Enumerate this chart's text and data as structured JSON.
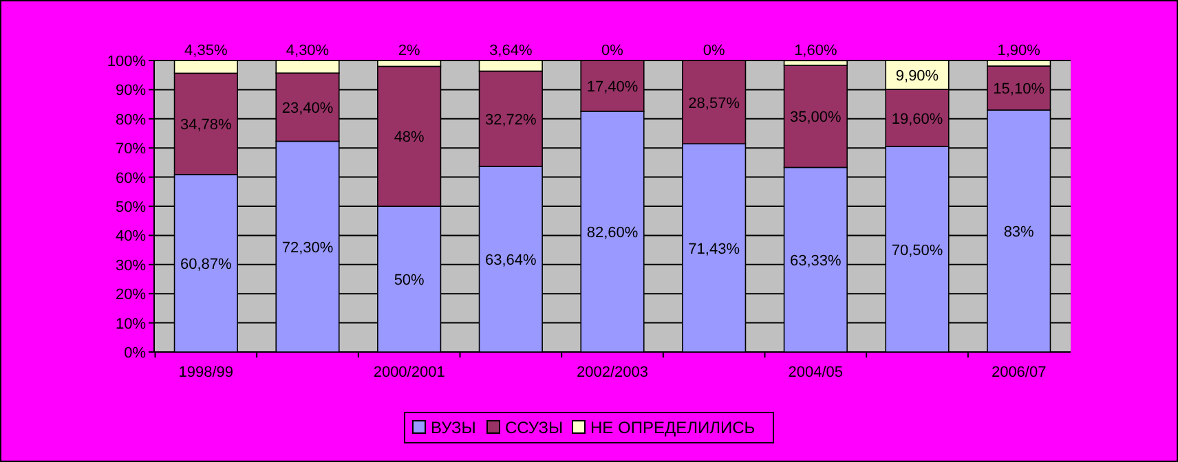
{
  "chart_data": {
    "type": "bar",
    "stacked": true,
    "categories": [
      "1998/99",
      null,
      "2000/2001",
      null,
      "2002/2003",
      null,
      "2004/05",
      null,
      "2006/07"
    ],
    "series": [
      {
        "name": "ВУЗЫ",
        "color": "#9999ff",
        "values": [
          60.87,
          72.3,
          50,
          63.64,
          82.6,
          71.43,
          63.33,
          70.5,
          83
        ],
        "value_labels": [
          "60,87%",
          "72,30%",
          "50%",
          "63,64%",
          "82,60%",
          "71,43%",
          "63,33%",
          "70,50%",
          "83%"
        ]
      },
      {
        "name": "ССУЗЫ",
        "color": "#993366",
        "values": [
          34.78,
          23.4,
          48,
          32.72,
          17.4,
          28.57,
          35.0,
          19.6,
          15.1
        ],
        "value_labels": [
          "34,78%",
          "23,40%",
          "48%",
          "32,72%",
          "17,40%",
          "28,57%",
          "35,00%",
          "19,60%",
          "15,10%"
        ]
      },
      {
        "name": "НЕ ОПРЕДЕЛИЛИСЬ",
        "color": "#ffffcc",
        "values": [
          4.35,
          4.3,
          2,
          3.64,
          0,
          0,
          1.6,
          9.9,
          1.9
        ],
        "value_labels": [
          "4,35%",
          "4,30%",
          "2%",
          "3,64%",
          "0%",
          "0%",
          "1,60%",
          "9,90%",
          "1,90%"
        ]
      }
    ],
    "ylim": [
      0,
      100
    ],
    "yticks": [
      {
        "value": 0,
        "label": "0%"
      },
      {
        "value": 10,
        "label": "10%"
      },
      {
        "value": 20,
        "label": "20%"
      },
      {
        "value": 30,
        "label": "30%"
      },
      {
        "value": 40,
        "label": "40%"
      },
      {
        "value": 50,
        "label": "50%"
      },
      {
        "value": 60,
        "label": "60%"
      },
      {
        "value": 70,
        "label": "70%"
      },
      {
        "value": 80,
        "label": "80%"
      },
      {
        "value": 90,
        "label": "90%"
      },
      {
        "value": 100,
        "label": "100%"
      }
    ],
    "grid": "y",
    "legend": "bottom"
  }
}
